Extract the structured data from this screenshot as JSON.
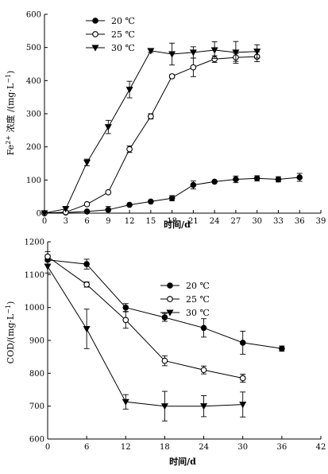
{
  "chart_data": [
    {
      "type": "line",
      "xlabel": "时间/d",
      "ylabel_parts": [
        "Fe",
        "2+",
        " 浓度 /(mg·L",
        "−1",
        ")"
      ],
      "xlim": [
        0,
        39
      ],
      "ylim": [
        0,
        600
      ],
      "xticks": [
        0,
        3,
        6,
        9,
        12,
        15,
        18,
        21,
        24,
        27,
        30,
        33,
        36,
        39
      ],
      "yticks": [
        0,
        100,
        200,
        300,
        400,
        500,
        600
      ],
      "legend": "top-left",
      "series": [
        {
          "name": "20 ℃",
          "marker": "filled-circle",
          "x": [
            0,
            3,
            6,
            9,
            12,
            15,
            18,
            21,
            24,
            27,
            30,
            33,
            36
          ],
          "y": [
            0,
            2,
            5,
            10,
            25,
            35,
            45,
            85,
            95,
            102,
            105,
            102,
            108
          ],
          "err": [
            0,
            0,
            0,
            10,
            0,
            0,
            8,
            12,
            0,
            10,
            8,
            8,
            12
          ]
        },
        {
          "name": "25 ℃",
          "marker": "open-circle",
          "x": [
            0,
            3,
            6,
            9,
            12,
            15,
            18,
            21,
            24,
            27,
            30
          ],
          "y": [
            0,
            3,
            27,
            63,
            193,
            292,
            413,
            440,
            465,
            470,
            472
          ],
          "err": [
            0,
            0,
            0,
            0,
            10,
            8,
            5,
            28,
            10,
            12,
            15
          ]
        },
        {
          "name": "30 ℃",
          "marker": "filled-triangle-down",
          "x": [
            0,
            3,
            6,
            9,
            12,
            15,
            18,
            21,
            24,
            27,
            30
          ],
          "y": [
            0,
            13,
            153,
            260,
            373,
            490,
            480,
            485,
            492,
            485,
            488
          ],
          "err": [
            0,
            0,
            10,
            20,
            25,
            5,
            33,
            17,
            25,
            33,
            20
          ]
        }
      ]
    },
    {
      "type": "line",
      "xlabel": "时间/d",
      "ylabel_parts": [
        "COD/(mg·L",
        "−1",
        ")"
      ],
      "xlim": [
        0,
        42
      ],
      "ylim": [
        600,
        1200
      ],
      "xticks": [
        0,
        6,
        12,
        18,
        24,
        30,
        36,
        42
      ],
      "yticks": [
        600,
        700,
        800,
        900,
        1000,
        1100,
        1200
      ],
      "legend": "top-right",
      "series": [
        {
          "name": "20 ℃",
          "marker": "filled-circle",
          "x": [
            0,
            6,
            12,
            18,
            24,
            30,
            36
          ],
          "y": [
            1145,
            1132,
            1000,
            970,
            938,
            893,
            875
          ],
          "err": [
            15,
            15,
            12,
            12,
            28,
            35,
            8
          ]
        },
        {
          "name": "25 ℃",
          "marker": "open-circle",
          "x": [
            0,
            6,
            12,
            18,
            24,
            30
          ],
          "y": [
            1155,
            1070,
            962,
            838,
            810,
            785
          ],
          "err": [
            15,
            8,
            25,
            15,
            12,
            12
          ]
        },
        {
          "name": "30 ℃",
          "marker": "filled-triangle-down",
          "x": [
            0,
            6,
            12,
            18,
            24,
            30
          ],
          "y": [
            1125,
            935,
            713,
            700,
            700,
            705
          ],
          "err": [
            20,
            60,
            22,
            45,
            32,
            38
          ]
        }
      ]
    }
  ]
}
